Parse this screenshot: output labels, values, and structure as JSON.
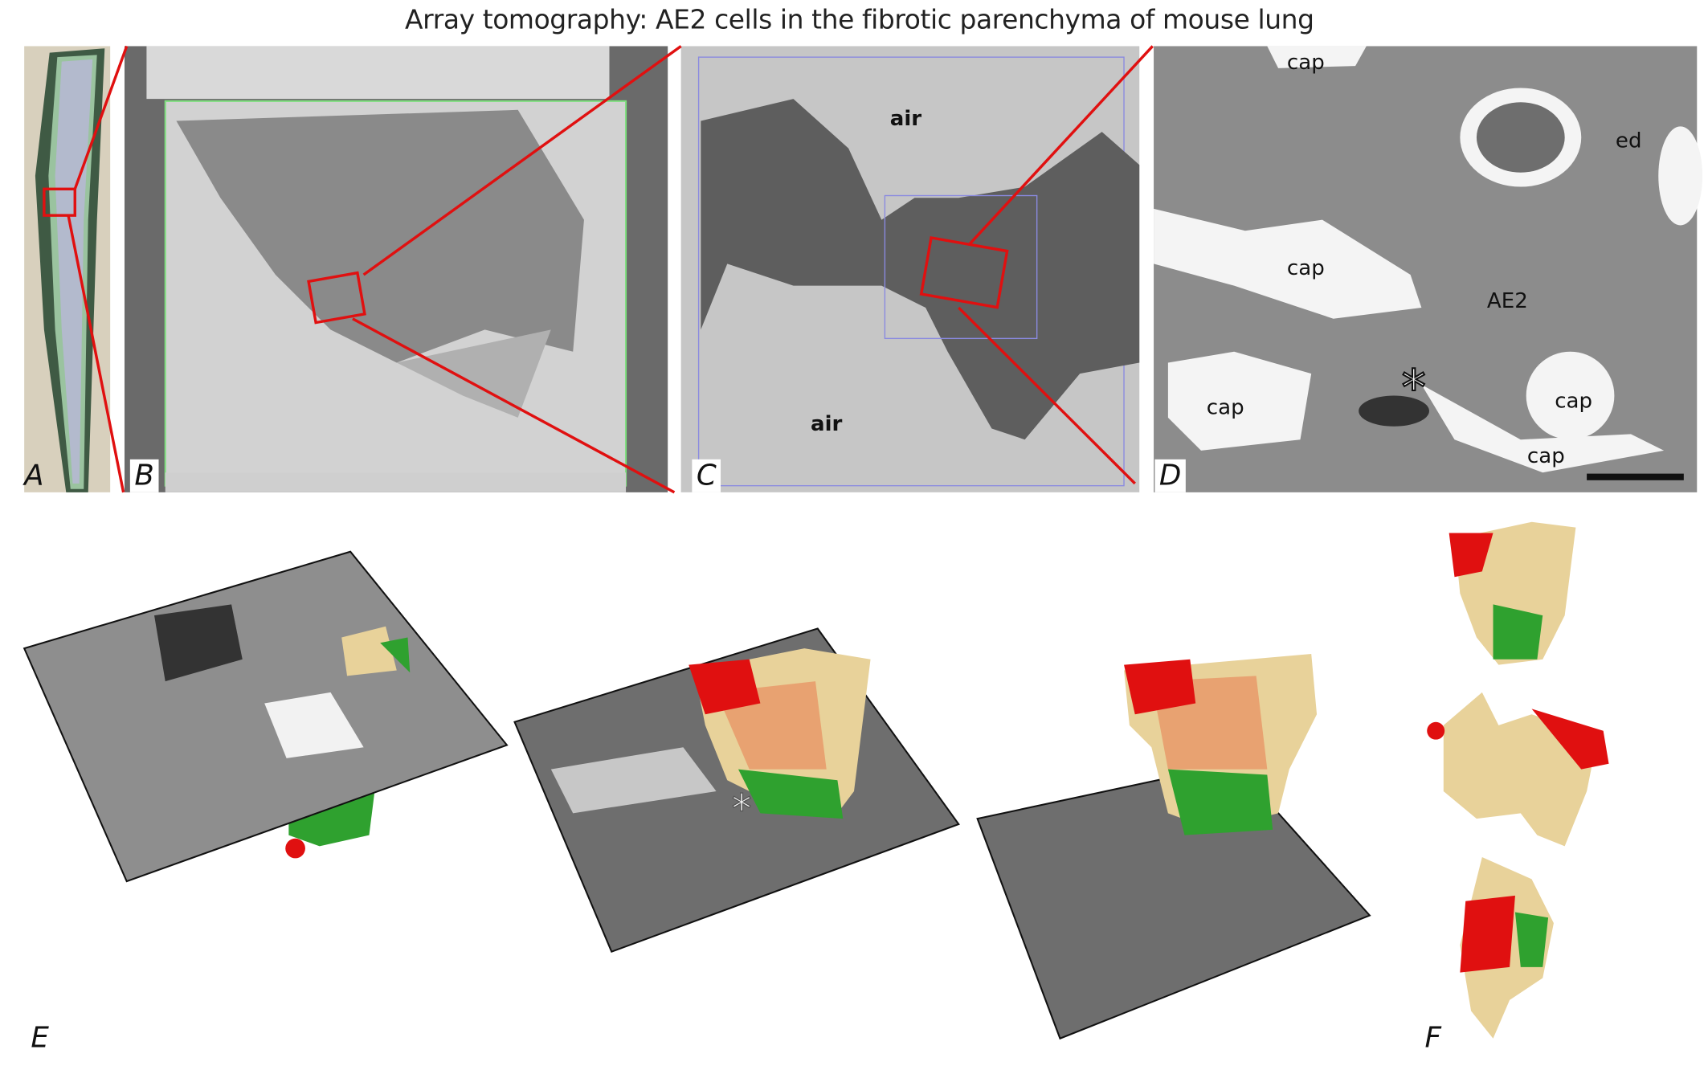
{
  "title": "Array tomography: AE2 cells in the fibrotic parenchyma of mouse lung",
  "panels": {
    "a": {
      "label": "A"
    },
    "b": {
      "label": "B"
    },
    "c": {
      "label": "C",
      "annotations": [
        "air",
        "air"
      ]
    },
    "d": {
      "label": "D",
      "annotations": [
        "cap",
        "ed",
        "cap",
        "AE2",
        "cap",
        "cap",
        "cap",
        "*"
      ]
    },
    "e": {
      "label": "E"
    },
    "f": {
      "label": "F"
    }
  },
  "colors": {
    "zoom_lines": "#e01010",
    "cell_body": "#e8d29a",
    "green_segment": "#2fa12f",
    "red_segment": "#e01010",
    "nucleus": "#e89a6a"
  }
}
